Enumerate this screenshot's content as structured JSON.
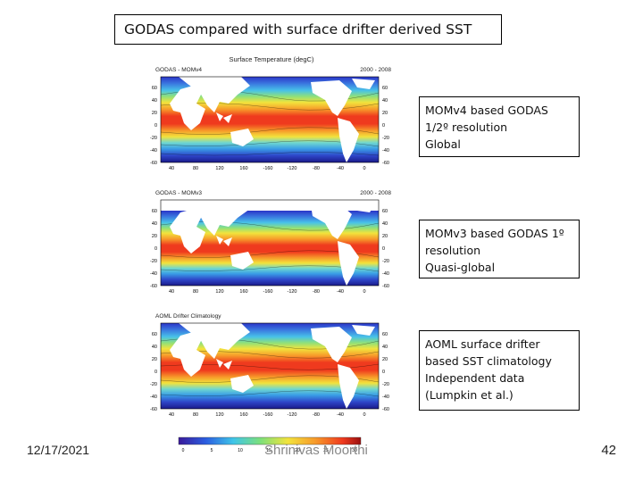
{
  "slide": {
    "title": "GODAS compared with surface drifter derived SST",
    "date": "12/17/2021",
    "author": "Shrinivas Moorthi",
    "page_number": "42"
  },
  "figure": {
    "main_title": "Surface Temperature (degC)",
    "panels": [
      {
        "label": "GODAS - MOMv4",
        "period": "2000 - 2008"
      },
      {
        "label": "GODAS - MOMv3",
        "period": "2000 - 2008"
      },
      {
        "label": "AOML Drifter Climatology",
        "period": ""
      }
    ],
    "lat_ticks": [
      "60",
      "40",
      "20",
      "0",
      "-20",
      "-40",
      "-60"
    ],
    "lon_ticks": [
      "40",
      "80",
      "120",
      "160",
      "-160",
      "-120",
      "-80",
      "-40",
      "0"
    ],
    "colorbar_ticks": [
      "0",
      "5",
      "10",
      "15",
      "20",
      "25",
      "30"
    ]
  },
  "captions": [
    "MOMv4 based GODAS\n1/2º resolution\nGlobal",
    "MOMv3 based GODAS 1º\nresolution\nQuasi-global",
    "AOML surface drifter\nbased SST climatology\nIndependent data\n(Lumpkin et al.)"
  ]
}
